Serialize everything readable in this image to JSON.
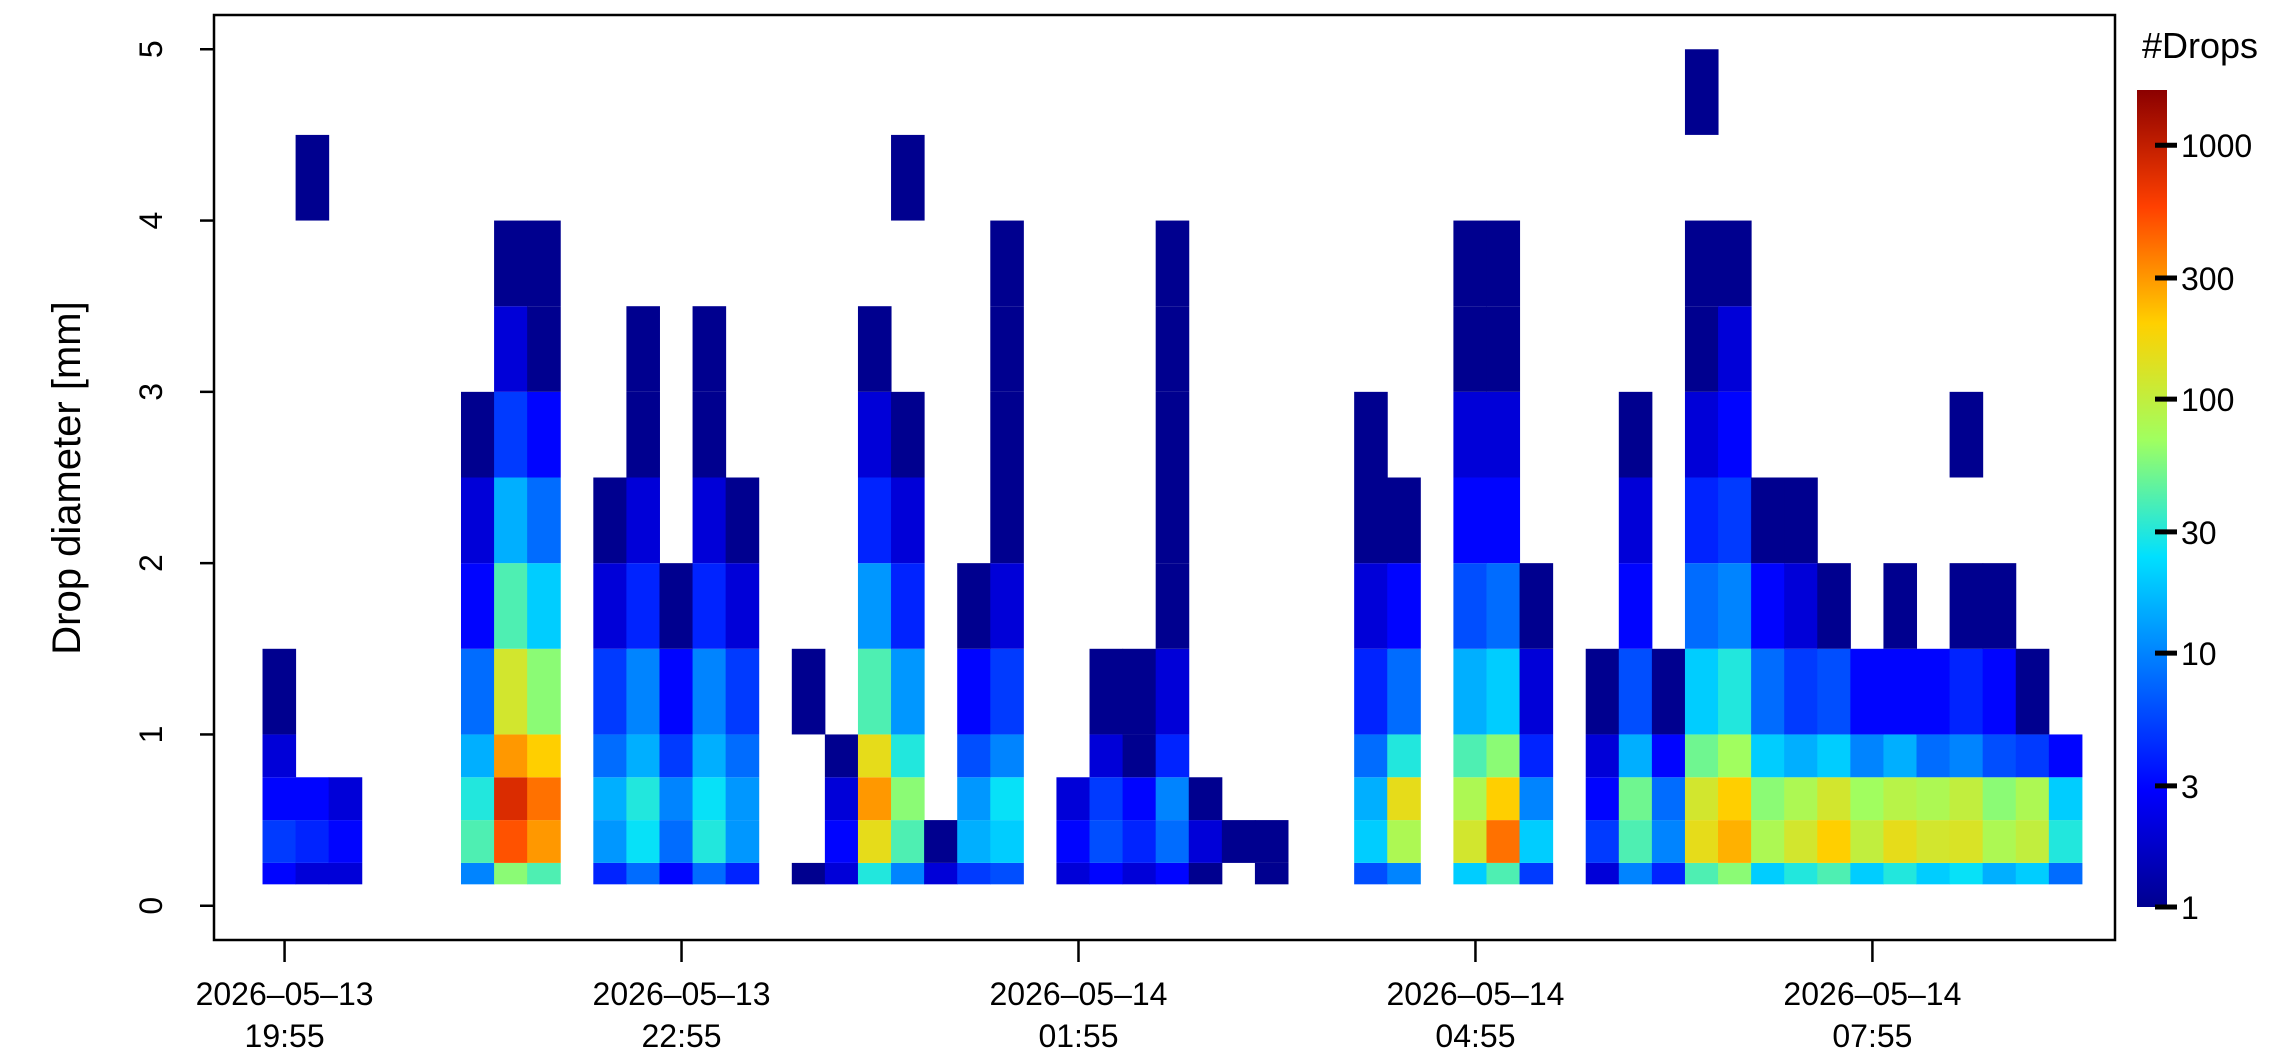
{
  "chart_data": {
    "type": "heatmap",
    "y_label": "Drop diameter [mm]",
    "colorbar_title": "#Drops",
    "x": [
      "2026-05-13 19:45",
      "2026-05-13 20:00",
      "2026-05-13 20:15",
      "2026-05-13 20:30",
      "2026-05-13 20:45",
      "2026-05-13 21:00",
      "2026-05-13 21:15",
      "2026-05-13 21:30",
      "2026-05-13 21:45",
      "2026-05-13 22:00",
      "2026-05-13 22:15",
      "2026-05-13 22:30",
      "2026-05-13 22:45",
      "2026-05-13 23:00",
      "2026-05-13 23:15",
      "2026-05-13 23:30",
      "2026-05-13 23:45",
      "2026-05-14 00:00",
      "2026-05-14 00:15",
      "2026-05-14 00:30",
      "2026-05-14 00:45",
      "2026-05-14 01:00",
      "2026-05-14 01:15",
      "2026-05-14 01:30",
      "2026-05-14 01:45",
      "2026-05-14 02:00",
      "2026-05-14 02:15",
      "2026-05-14 02:30",
      "2026-05-14 02:45",
      "2026-05-14 03:00",
      "2026-05-14 03:15",
      "2026-05-14 03:30",
      "2026-05-14 03:45",
      "2026-05-14 04:00",
      "2026-05-14 04:15",
      "2026-05-14 04:30",
      "2026-05-14 04:45",
      "2026-05-14 05:00",
      "2026-05-14 05:15",
      "2026-05-14 05:30",
      "2026-05-14 05:45",
      "2026-05-14 06:00",
      "2026-05-14 06:15",
      "2026-05-14 06:30",
      "2026-05-14 06:45",
      "2026-05-14 07:00",
      "2026-05-14 07:15",
      "2026-05-14 07:30",
      "2026-05-14 07:45",
      "2026-05-14 08:00",
      "2026-05-14 08:15",
      "2026-05-14 08:30",
      "2026-05-14 08:45",
      "2026-05-14 09:00",
      "2026-05-14 09:15",
      "2026-05-14 09:30"
    ],
    "y_bins": [
      0.125,
      0.25,
      0.5,
      0.75,
      1,
      1.5,
      2,
      2.5,
      3,
      3.5,
      4,
      4.5,
      5
    ],
    "counts": [
      [
        3,
        5,
        3,
        2,
        1,
        null,
        null,
        null,
        null,
        null,
        null,
        null
      ],
      [
        2,
        4,
        3,
        null,
        null,
        null,
        null,
        null,
        null,
        null,
        1,
        null
      ],
      [
        2,
        3,
        2,
        null,
        null,
        null,
        null,
        null,
        null,
        null,
        null,
        null
      ],
      null,
      null,
      null,
      [
        10,
        40,
        30,
        15,
        8,
        3,
        2,
        1,
        null,
        null,
        null,
        null
      ],
      [
        60,
        500,
        800,
        300,
        120,
        40,
        15,
        5,
        2,
        1,
        null,
        null
      ],
      [
        40,
        300,
        400,
        200,
        60,
        20,
        8,
        3,
        1,
        1,
        null,
        null
      ],
      null,
      [
        4,
        12,
        15,
        8,
        5,
        2,
        1,
        null,
        null,
        null,
        null,
        null
      ],
      [
        8,
        25,
        30,
        15,
        10,
        4,
        2,
        1,
        1,
        null,
        null,
        null
      ],
      [
        3,
        8,
        10,
        5,
        3,
        1,
        null,
        null,
        null,
        null,
        null,
        null
      ],
      [
        8,
        30,
        25,
        15,
        10,
        4,
        2,
        1,
        1,
        null,
        null,
        null
      ],
      [
        4,
        12,
        12,
        8,
        5,
        2,
        1,
        null,
        null,
        null,
        null,
        null
      ],
      null,
      [
        1,
        null,
        null,
        null,
        1,
        null,
        null,
        null,
        null,
        null,
        null,
        null
      ],
      [
        2,
        3,
        2,
        1,
        null,
        null,
        null,
        null,
        null,
        null,
        null,
        null
      ],
      [
        30,
        150,
        300,
        150,
        40,
        12,
        4,
        2,
        1,
        null,
        null,
        null
      ],
      [
        10,
        40,
        60,
        30,
        12,
        4,
        2,
        1,
        null,
        null,
        1,
        null
      ],
      [
        2,
        1,
        null,
        null,
        null,
        null,
        null,
        null,
        null,
        null,
        null,
        null
      ],
      [
        5,
        15,
        12,
        6,
        3,
        1,
        null,
        null,
        null,
        null,
        null,
        null
      ],
      [
        6,
        20,
        25,
        10,
        5,
        2,
        1,
        1,
        1,
        1,
        null,
        null
      ],
      null,
      [
        2,
        3,
        2,
        null,
        null,
        null,
        null,
        null,
        null,
        null,
        null,
        null
      ],
      [
        3,
        6,
        5,
        2,
        1,
        null,
        null,
        null,
        null,
        null,
        null,
        null
      ],
      [
        2,
        4,
        3,
        1,
        1,
        null,
        null,
        null,
        null,
        null,
        null,
        null
      ],
      [
        3,
        8,
        10,
        4,
        2,
        1,
        1,
        1,
        1,
        1,
        null,
        null
      ],
      [
        1,
        2,
        1,
        null,
        null,
        null,
        null,
        null,
        null,
        null,
        null,
        null
      ],
      [
        null,
        1,
        null,
        null,
        null,
        null,
        null,
        null,
        null,
        null,
        null,
        null
      ],
      [
        1,
        1,
        null,
        null,
        null,
        null,
        null,
        null,
        null,
        null,
        null,
        null
      ],
      null,
      null,
      [
        6,
        20,
        15,
        8,
        4,
        2,
        1,
        1,
        null,
        null,
        null,
        null
      ],
      [
        10,
        80,
        150,
        30,
        8,
        3,
        1,
        null,
        null,
        null,
        null,
        null
      ],
      null,
      [
        20,
        120,
        80,
        40,
        15,
        6,
        3,
        2,
        1,
        1,
        null,
        null
      ],
      [
        40,
        400,
        200,
        60,
        20,
        8,
        3,
        2,
        1,
        1,
        null,
        null
      ],
      [
        5,
        20,
        10,
        4,
        2,
        1,
        null,
        null,
        null,
        null,
        null,
        null
      ],
      null,
      [
        2,
        5,
        3,
        2,
        1,
        null,
        null,
        null,
        null,
        null,
        null,
        null
      ],
      [
        10,
        40,
        50,
        15,
        6,
        3,
        2,
        1,
        null,
        null,
        null,
        null
      ],
      [
        4,
        10,
        8,
        3,
        1,
        null,
        null,
        null,
        null,
        null,
        null,
        null
      ],
      [
        40,
        150,
        120,
        50,
        20,
        8,
        4,
        2,
        1,
        1,
        null,
        1
      ],
      [
        60,
        250,
        200,
        70,
        30,
        10,
        5,
        3,
        2,
        1,
        null,
        null
      ],
      [
        20,
        80,
        60,
        20,
        8,
        3,
        1,
        null,
        null,
        null,
        null,
        null
      ],
      [
        30,
        120,
        80,
        15,
        5,
        2,
        1,
        null,
        null,
        null,
        null,
        null
      ],
      [
        40,
        200,
        120,
        20,
        6,
        1,
        null,
        null,
        null,
        null,
        null,
        null
      ],
      [
        20,
        100,
        70,
        10,
        3,
        null,
        null,
        null,
        null,
        null,
        null,
        null
      ],
      [
        30,
        150,
        90,
        15,
        3,
        1,
        null,
        null,
        null,
        null,
        null,
        null
      ],
      [
        20,
        120,
        80,
        8,
        3,
        null,
        null,
        null,
        null,
        null,
        null,
        null
      ],
      [
        25,
        130,
        100,
        10,
        4,
        1,
        null,
        1,
        null,
        null,
        null,
        null
      ],
      [
        15,
        80,
        60,
        6,
        3,
        1,
        null,
        null,
        null,
        null,
        null,
        null
      ],
      [
        20,
        100,
        80,
        5,
        1,
        null,
        null,
        null,
        null,
        null,
        null,
        null
      ],
      [
        8,
        30,
        20,
        3,
        null,
        null,
        null,
        null,
        null,
        null,
        null,
        null
      ]
    ],
    "xlim": [
      "2026-05-13 19:23",
      "2026-05-14 09:45"
    ],
    "xticks": [
      {
        "value": "2026-05-13 19:55",
        "label": "2026–05–13 19:55"
      },
      {
        "value": "2026-05-13 22:55",
        "label": "2026–05–13 22:55"
      },
      {
        "value": "2026-05-14 01:55",
        "label": "2026–05–14 01:55"
      },
      {
        "value": "2026-05-14 04:55",
        "label": "2026–05–14 04:55"
      },
      {
        "value": "2026-05-14 07:55",
        "label": "2026–05–14 07:55"
      }
    ],
    "ylim": [
      -0.2,
      5.2
    ],
    "yticks": [
      0,
      1,
      2,
      3,
      4,
      5
    ],
    "zlim": [
      1,
      1650
    ],
    "zticks": [
      1,
      3,
      10,
      30,
      100,
      300,
      1000
    ],
    "log_z": true,
    "colorscale": [
      "#00008f",
      "#0000ff",
      "#0070ff",
      "#00e0ff",
      "#a0ff60",
      "#ffd000",
      "#ff4000",
      "#8b0000"
    ]
  }
}
